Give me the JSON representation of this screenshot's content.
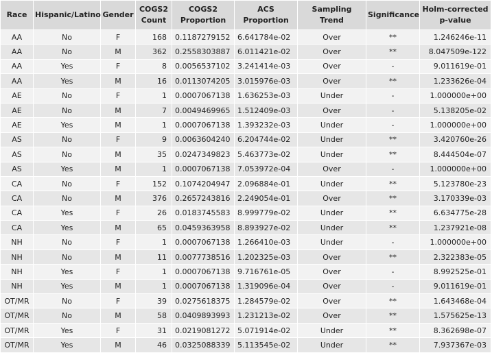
{
  "table": {
    "headers": [
      "Race",
      "Hispanic/Latino",
      "Gender",
      "COGS2 Count",
      "COGS2 Proportion",
      "ACS Proportion",
      "Sampling Trend",
      "Significance",
      "Holm-corrected p-value"
    ],
    "rows": [
      [
        "AA",
        "No",
        "F",
        "168",
        "0.1187279152",
        "6.641784e-02",
        "Over",
        "**",
        "1.246246e-11"
      ],
      [
        "AA",
        "No",
        "M",
        "362",
        "0.2558303887",
        "6.011421e-02",
        "Over",
        "**",
        "8.047509e-122"
      ],
      [
        "AA",
        "Yes",
        "F",
        "8",
        "0.0056537102",
        "3.241414e-03",
        "Over",
        "-",
        "9.011619e-01"
      ],
      [
        "AA",
        "Yes",
        "M",
        "16",
        "0.0113074205",
        "3.015976e-03",
        "Over",
        "**",
        "1.233626e-04"
      ],
      [
        "AE",
        "No",
        "F",
        "1",
        "0.0007067138",
        "1.636253e-03",
        "Under",
        "-",
        "1.000000e+00"
      ],
      [
        "AE",
        "No",
        "M",
        "7",
        "0.0049469965",
        "1.512409e-03",
        "Over",
        "-",
        "5.138205e-02"
      ],
      [
        "AE",
        "Yes",
        "M",
        "1",
        "0.0007067138",
        "1.393232e-03",
        "Under",
        "-",
        "1.000000e+00"
      ],
      [
        "AS",
        "No",
        "F",
        "9",
        "0.0063604240",
        "6.204744e-02",
        "Under",
        "**",
        "3.420760e-26"
      ],
      [
        "AS",
        "No",
        "M",
        "35",
        "0.0247349823",
        "5.463773e-02",
        "Under",
        "**",
        "8.444504e-07"
      ],
      [
        "AS",
        "Yes",
        "M",
        "1",
        "0.0007067138",
        "7.053972e-04",
        "Over",
        "-",
        "1.000000e+00"
      ],
      [
        "CA",
        "No",
        "F",
        "152",
        "0.1074204947",
        "2.096884e-01",
        "Under",
        "**",
        "5.123780e-23"
      ],
      [
        "CA",
        "No",
        "M",
        "376",
        "0.2657243816",
        "2.249054e-01",
        "Over",
        "**",
        "3.170339e-03"
      ],
      [
        "CA",
        "Yes",
        "F",
        "26",
        "0.0183745583",
        "8.999779e-02",
        "Under",
        "**",
        "6.634775e-28"
      ],
      [
        "CA",
        "Yes",
        "M",
        "65",
        "0.0459363958",
        "8.893927e-02",
        "Under",
        "**",
        "1.237921e-08"
      ],
      [
        "NH",
        "No",
        "F",
        "1",
        "0.0007067138",
        "1.266410e-03",
        "Under",
        "-",
        "1.000000e+00"
      ],
      [
        "NH",
        "No",
        "M",
        "11",
        "0.0077738516",
        "1.202325e-03",
        "Over",
        "**",
        "2.322383e-05"
      ],
      [
        "NH",
        "Yes",
        "F",
        "1",
        "0.0007067138",
        "9.716761e-05",
        "Over",
        "-",
        "8.992525e-01"
      ],
      [
        "NH",
        "Yes",
        "M",
        "1",
        "0.0007067138",
        "1.319096e-04",
        "Over",
        "-",
        "9.011619e-01"
      ],
      [
        "OT/MR",
        "No",
        "F",
        "39",
        "0.0275618375",
        "1.284579e-02",
        "Over",
        "**",
        "1.643468e-04"
      ],
      [
        "OT/MR",
        "No",
        "M",
        "58",
        "0.0409893993",
        "1.231213e-02",
        "Over",
        "**",
        "1.575625e-13"
      ],
      [
        "OT/MR",
        "Yes",
        "F",
        "31",
        "0.0219081272",
        "5.071914e-02",
        "Under",
        "**",
        "8.362698e-07"
      ],
      [
        "OT/MR",
        "Yes",
        "M",
        "46",
        "0.0325088339",
        "5.113545e-02",
        "Under",
        "**",
        "7.937367e-03"
      ]
    ]
  },
  "colors": {
    "header_bg": "#d9d9d9",
    "row_odd_bg": "#f2f2f2",
    "row_even_bg": "#e6e6e6",
    "text": "#222222"
  }
}
